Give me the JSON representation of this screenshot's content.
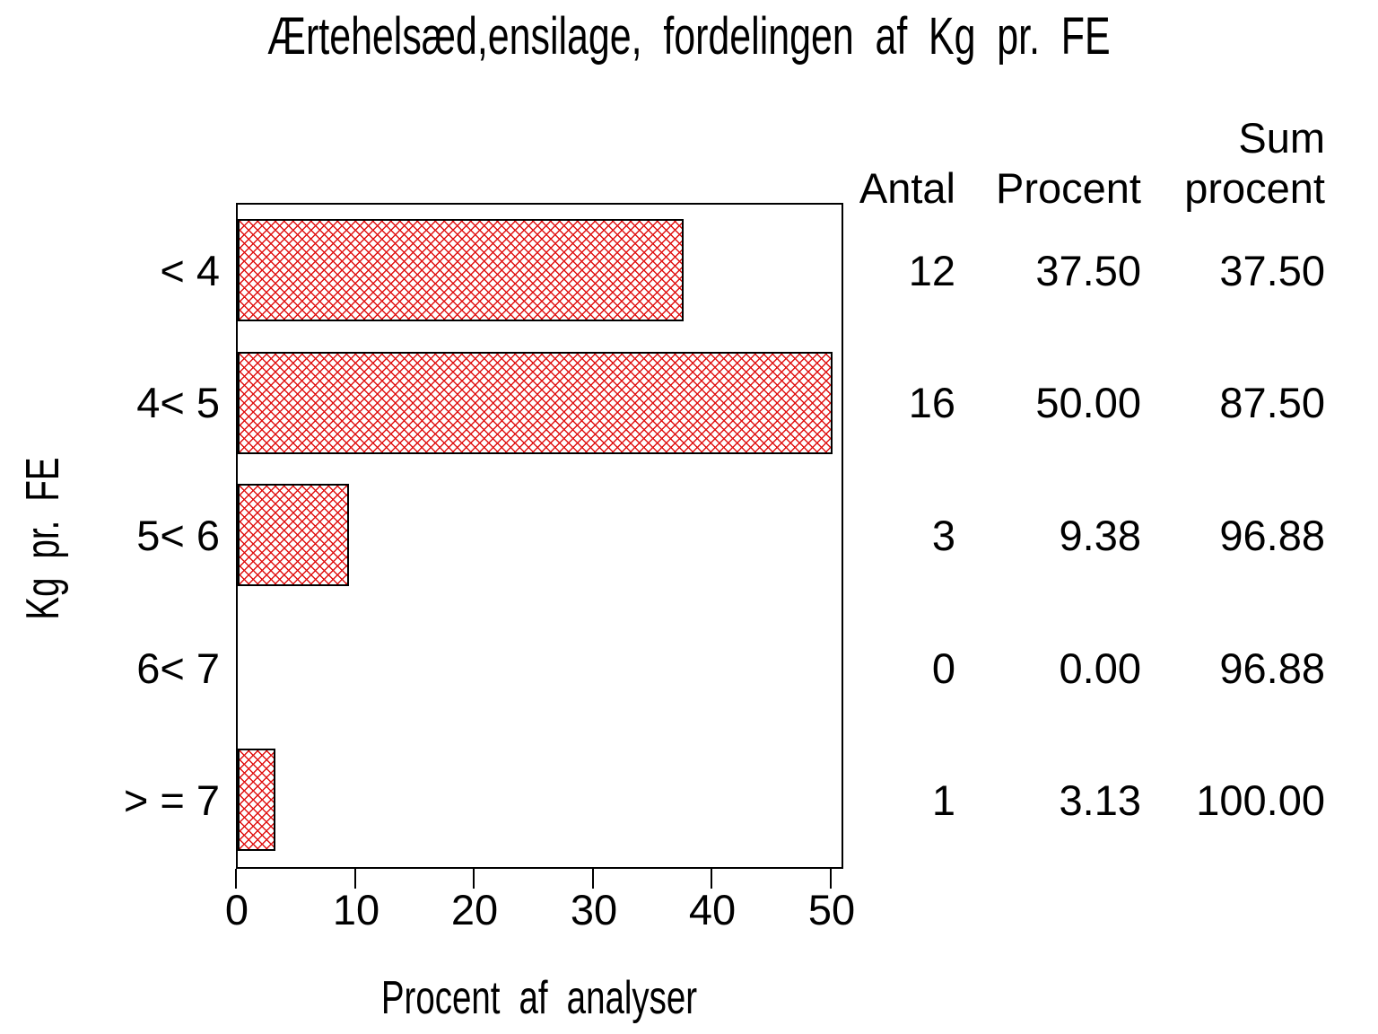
{
  "chart_data": {
    "type": "bar",
    "orientation": "horizontal",
    "title": "Ærtehelsæd,ensilage, fordelingen af Kg pr. FE",
    "xlabel": "Procent af analyser",
    "ylabel": "Kg pr. FE",
    "categories": [
      "< 4",
      "4< 5",
      "5< 6",
      "6< 7",
      "> = 7"
    ],
    "values": [
      37.5,
      50.0,
      9.38,
      0.0,
      3.13
    ],
    "counts": [
      12,
      16,
      3,
      0,
      1
    ],
    "cum_percent": [
      37.5,
      87.5,
      96.88,
      96.88,
      100.0
    ],
    "xlim": [
      0,
      51
    ],
    "xticks": [
      0,
      10,
      20,
      30,
      40,
      50
    ],
    "grid": false,
    "legend": "none",
    "bar_fill_style": "crosshatch",
    "bar_fill_color": "#e01212",
    "bar_outline_color": "#000000"
  },
  "table": {
    "headers": {
      "antal": "Antal",
      "procent": "Procent",
      "sum_line1": "Sum",
      "sum_line2": "procent"
    },
    "rows": [
      [
        "12",
        "37.50",
        "37.50"
      ],
      [
        "16",
        "50.00",
        "87.50"
      ],
      [
        "3",
        "9.38",
        "96.88"
      ],
      [
        "0",
        "0.00",
        "96.88"
      ],
      [
        "1",
        "3.13",
        "100.00"
      ]
    ]
  }
}
